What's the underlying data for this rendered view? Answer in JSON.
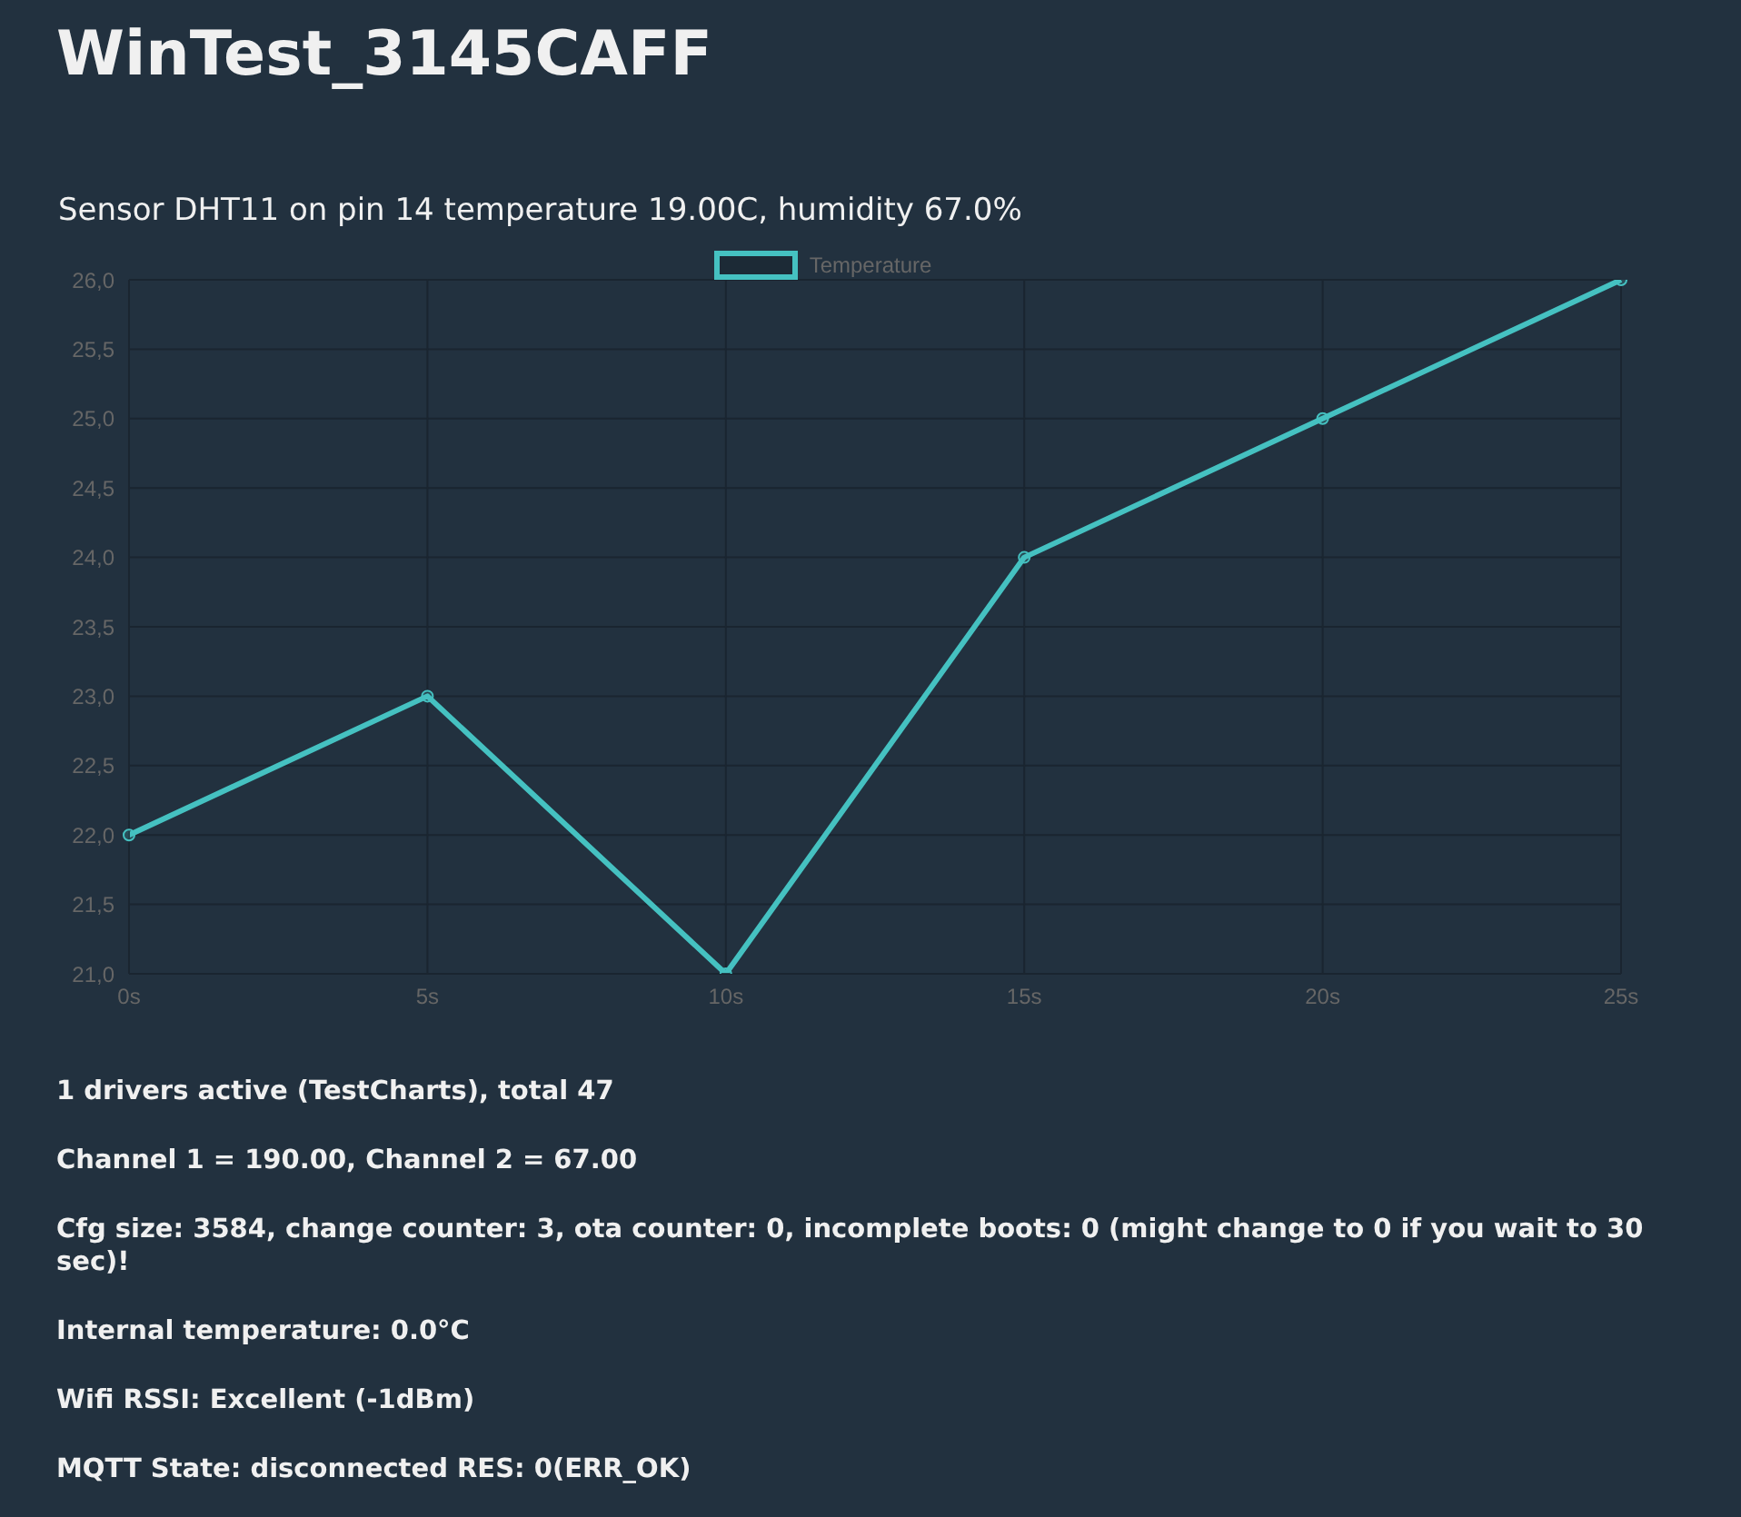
{
  "chart_data": {
    "type": "line",
    "title": "WinTest_3145CAFF",
    "subtitle": "Sensor DHT11 on pin 14 temperature 19.00C, humidity 67.0%",
    "categories": [
      "0s",
      "5s",
      "10s",
      "15s",
      "20s",
      "25s"
    ],
    "series": [
      {
        "name": "Temperature",
        "color": "#45c1c1",
        "values": [
          22,
          23,
          21,
          24,
          25,
          26
        ]
      }
    ],
    "ylim": [
      21,
      26
    ],
    "yticks": [
      {
        "value": 21,
        "label": "21,0"
      },
      {
        "value": 21.5,
        "label": "21,5"
      },
      {
        "value": 22,
        "label": "22,0"
      },
      {
        "value": 22.5,
        "label": "22,5"
      },
      {
        "value": 23,
        "label": "23,0"
      },
      {
        "value": 23.5,
        "label": "23,5"
      },
      {
        "value": 24,
        "label": "24,0"
      },
      {
        "value": 24.5,
        "label": "24,5"
      },
      {
        "value": 25,
        "label": "25,0"
      },
      {
        "value": 25.5,
        "label": "25,5"
      },
      {
        "value": 26,
        "label": "26,0"
      }
    ],
    "grid": true,
    "legend": "top",
    "marker": "circle",
    "line_style": "solid",
    "annotations": [
      "1 drivers active (TestCharts), total 47",
      "Channel 1 = 190.00, Channel 2 = 67.00",
      "Cfg size: 3584, change counter: 3, ota counter: 0, incomplete boots: 0 (might change to 0 if you wait to 30 sec)!",
      "Internal temperature: 0.0°C",
      "Wifi RSSI: Excellent (-1dBm)",
      "MQTT State: disconnected RES: 0(ERR_OK)"
    ]
  }
}
